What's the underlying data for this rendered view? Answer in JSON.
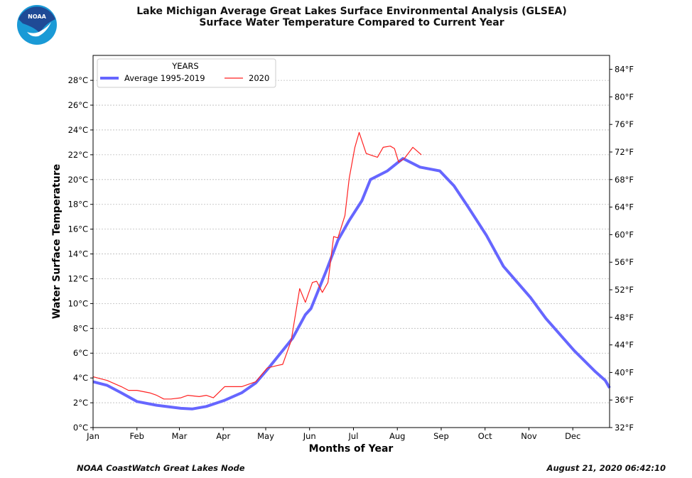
{
  "logo_text": "NOAA",
  "footer": {
    "left": "NOAA CoastWatch Great Lakes Node",
    "right": "August 21, 2020 06:42:10"
  },
  "colors": {
    "average": "#6666ff",
    "current": "#ff2222",
    "logo_dark": "#1f4a96",
    "logo_light": "#1a9ad6"
  },
  "chart_data": {
    "type": "line",
    "title": "Lake Michigan Average Great Lakes Surface Environmental Analysis (GLSEA)",
    "subtitle": "Surface Water Temperature Compared to Current Year",
    "xlabel": "Months of Year",
    "ylabel": "Water Surface Temperature",
    "xlim": [
      0,
      365
    ],
    "ylim": [
      0,
      30
    ],
    "grid": true,
    "x_ticks": [
      {
        "day": 0,
        "label": "Jan"
      },
      {
        "day": 31,
        "label": "Feb"
      },
      {
        "day": 61,
        "label": "Mar"
      },
      {
        "day": 92,
        "label": "Apr"
      },
      {
        "day": 122,
        "label": "May"
      },
      {
        "day": 153,
        "label": "Jun"
      },
      {
        "day": 184,
        "label": "Jul"
      },
      {
        "day": 215,
        "label": "Aug"
      },
      {
        "day": 246,
        "label": "Sep"
      },
      {
        "day": 277,
        "label": "Oct"
      },
      {
        "day": 308,
        "label": "Nov"
      },
      {
        "day": 339,
        "label": "Dec"
      }
    ],
    "y_ticks_c": [
      {
        "v": 0,
        "label": "0°C"
      },
      {
        "v": 2,
        "label": "2°C"
      },
      {
        "v": 4,
        "label": "4°C"
      },
      {
        "v": 6,
        "label": "6°C"
      },
      {
        "v": 8,
        "label": "8°C"
      },
      {
        "v": 10,
        "label": "10°C"
      },
      {
        "v": 12,
        "label": "12°C"
      },
      {
        "v": 14,
        "label": "14°C"
      },
      {
        "v": 16,
        "label": "16°C"
      },
      {
        "v": 18,
        "label": "18°C"
      },
      {
        "v": 20,
        "label": "20°C"
      },
      {
        "v": 22,
        "label": "22°C"
      },
      {
        "v": 24,
        "label": "24°C"
      },
      {
        "v": 26,
        "label": "26°C"
      },
      {
        "v": 28,
        "label": "28°C"
      }
    ],
    "y_ticks_f": [
      {
        "v": 32,
        "label": "32°F"
      },
      {
        "v": 36,
        "label": "36°F"
      },
      {
        "v": 40,
        "label": "40°F"
      },
      {
        "v": 44,
        "label": "44°F"
      },
      {
        "v": 48,
        "label": "48°F"
      },
      {
        "v": 52,
        "label": "52°F"
      },
      {
        "v": 56,
        "label": "56°F"
      },
      {
        "v": 60,
        "label": "60°F"
      },
      {
        "v": 64,
        "label": "64°F"
      },
      {
        "v": 68,
        "label": "68°F"
      },
      {
        "v": 72,
        "label": "72°F"
      },
      {
        "v": 76,
        "label": "76°F"
      },
      {
        "v": 80,
        "label": "80°F"
      },
      {
        "v": 84,
        "label": "84°F"
      }
    ],
    "legend": {
      "title": "YEARS",
      "placement": "top-left"
    },
    "series": [
      {
        "name": "Average 1995-2019",
        "x": [
          0,
          10,
          20,
          31,
          45,
          62,
          70,
          80,
          93,
          105,
          115,
          124,
          141,
          150,
          154,
          165,
          173,
          181,
          190,
          196,
          208,
          219,
          231,
          245,
          255,
          265,
          278,
          290,
          309,
          320,
          340,
          355,
          362,
          365
        ],
        "y": [
          3.7,
          3.4,
          2.8,
          2.1,
          1.8,
          1.55,
          1.5,
          1.7,
          2.2,
          2.8,
          3.6,
          4.8,
          7.2,
          9.1,
          9.6,
          12.7,
          15.1,
          16.7,
          18.3,
          20.0,
          20.7,
          21.7,
          21.0,
          20.7,
          19.5,
          17.8,
          15.5,
          13.0,
          10.5,
          8.8,
          6.2,
          4.5,
          3.8,
          3.2
        ]
      },
      {
        "name": "2020",
        "x": [
          0,
          10,
          20,
          25,
          31,
          40,
          45,
          50,
          55,
          62,
          67,
          75,
          80,
          85,
          93,
          105,
          115,
          123,
          130,
          134,
          140,
          146,
          150,
          155,
          158,
          162,
          166,
          170,
          173,
          178,
          181,
          185,
          188,
          193,
          198,
          201,
          205,
          210,
          213,
          216,
          220,
          226,
          232
        ],
        "y": [
          4.1,
          3.8,
          3.3,
          3.0,
          3.0,
          2.8,
          2.6,
          2.3,
          2.3,
          2.4,
          2.6,
          2.5,
          2.6,
          2.4,
          3.3,
          3.3,
          3.7,
          4.8,
          5.0,
          5.1,
          7.0,
          11.2,
          10.1,
          11.7,
          11.8,
          10.9,
          11.7,
          15.4,
          15.3,
          17.1,
          20.1,
          22.6,
          23.8,
          22.1,
          21.9,
          21.8,
          22.6,
          22.7,
          22.5,
          21.4,
          21.7,
          22.6,
          22.0
        ]
      }
    ]
  }
}
